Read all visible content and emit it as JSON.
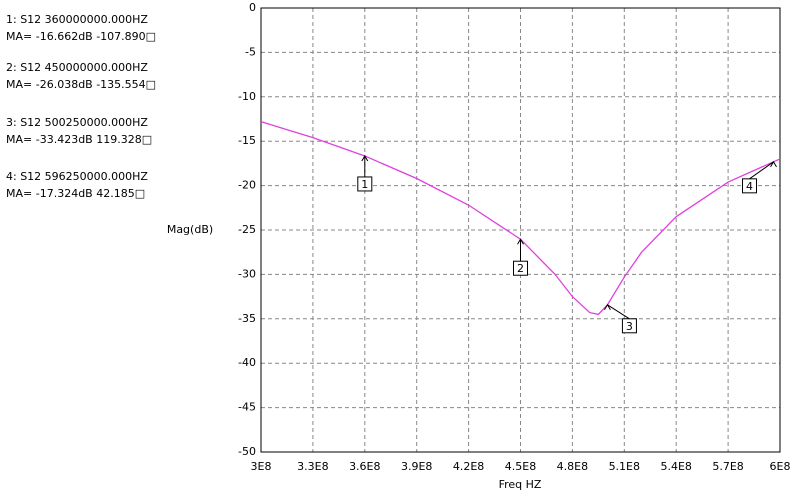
{
  "chart_data": {
    "type": "line",
    "ylabel": "Mag(dB)",
    "xlabel": "Freq HZ",
    "xlim": [
      300000000,
      600000000
    ],
    "xticks": [
      {
        "value": 300000000,
        "label": "3E8"
      },
      {
        "value": 330000000,
        "label": "3.3E8"
      },
      {
        "value": 360000000,
        "label": "3.6E8"
      },
      {
        "value": 390000000,
        "label": "3.9E8"
      },
      {
        "value": 420000000,
        "label": "4.2E8"
      },
      {
        "value": 450000000,
        "label": "4.5E8"
      },
      {
        "value": 480000000,
        "label": "4.8E8"
      },
      {
        "value": 510000000,
        "label": "5.1E8"
      },
      {
        "value": 540000000,
        "label": "5.4E8"
      },
      {
        "value": 570000000,
        "label": "5.7E8"
      },
      {
        "value": 600000000,
        "label": "6E8"
      }
    ],
    "ylim": [
      -50,
      0
    ],
    "yticks": [
      0,
      -5,
      -10,
      -15,
      -20,
      -25,
      -30,
      -35,
      -40,
      -45,
      -50
    ],
    "grid": true,
    "x": [
      300000000,
      330000000,
      360000000,
      390000000,
      420000000,
      450000000,
      470000000,
      480000000,
      490000000,
      495000000,
      500250000,
      510000000,
      520000000,
      540000000,
      570000000,
      596250000,
      600000000
    ],
    "series": [
      {
        "name": "S12",
        "color": "#e040e0",
        "values": [
          -12.8,
          -14.6,
          -16.662,
          -19.2,
          -22.2,
          -26.038,
          -30,
          -32.5,
          -34.3,
          -34.5,
          -33.423,
          -30.3,
          -27.5,
          -23.5,
          -19.6,
          -17.324,
          -17
        ]
      }
    ],
    "markers": [
      {
        "label": "1",
        "x": 360000000,
        "y": -16.662,
        "readout": [
          "1: S12  360000000.000HZ",
          "MA= -16.662dB -107.890□"
        ]
      },
      {
        "label": "2",
        "x": 450000000,
        "y": -26.038,
        "readout": [
          "2: S12  450000000.000HZ",
          "MA= -26.038dB -135.554□"
        ]
      },
      {
        "label": "3",
        "x": 500250000,
        "y": -33.423,
        "readout": [
          "3: S12  500250000.000HZ",
          "MA= -33.423dB 119.328□"
        ]
      },
      {
        "label": "4",
        "x": 596250000,
        "y": -17.324,
        "readout": [
          "4: S12  596250000.000HZ",
          "MA= -17.324dB 42.185□"
        ]
      }
    ]
  }
}
